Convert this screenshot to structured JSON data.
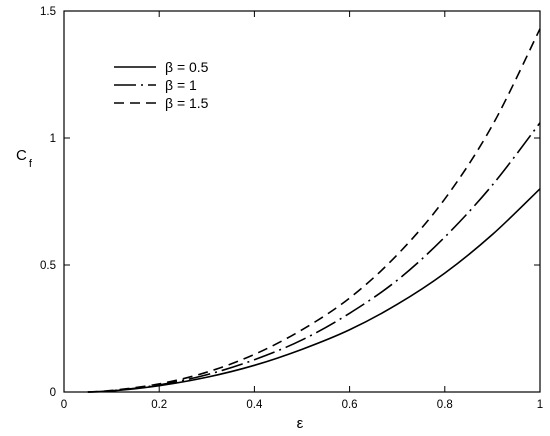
{
  "chart_data": {
    "type": "line",
    "title": "",
    "xlabel": "ε",
    "ylabel_main": "C",
    "ylabel_sub": "f",
    "xlim": [
      0,
      1
    ],
    "ylim": [
      0,
      1.5
    ],
    "grid": false,
    "legend_position": "top-left",
    "xticks": [
      0,
      0.2,
      0.4,
      0.6,
      0.8,
      1
    ],
    "xtick_labels": [
      "0",
      "0.2",
      "0.4",
      "0.6",
      "0.8",
      "1"
    ],
    "yticks": [
      0,
      0.5,
      1,
      1.5
    ],
    "ytick_labels": [
      "0",
      "0.5",
      "1",
      "1.5"
    ],
    "series": [
      {
        "name": "β = 0.5",
        "style": "solid",
        "x": [
          0.05,
          0.1,
          0.2,
          0.3,
          0.4,
          0.5,
          0.6,
          0.7,
          0.8,
          0.9,
          1.0
        ],
        "y": [
          0.0,
          0.004,
          0.025,
          0.058,
          0.105,
          0.168,
          0.245,
          0.345,
          0.468,
          0.62,
          0.8
        ]
      },
      {
        "name": "β = 1",
        "style": "dashdot",
        "x": [
          0.05,
          0.1,
          0.2,
          0.3,
          0.4,
          0.5,
          0.6,
          0.7,
          0.8,
          0.9,
          1.0
        ],
        "y": [
          0.0,
          0.005,
          0.028,
          0.068,
          0.127,
          0.205,
          0.31,
          0.44,
          0.61,
          0.815,
          1.06
        ]
      },
      {
        "name": "β = 1.5",
        "style": "dashed",
        "x": [
          0.05,
          0.1,
          0.2,
          0.3,
          0.4,
          0.5,
          0.6,
          0.7,
          0.8,
          0.9,
          1.0
        ],
        "y": [
          0.0,
          0.006,
          0.032,
          0.078,
          0.148,
          0.245,
          0.37,
          0.54,
          0.76,
          1.05,
          1.43
        ]
      }
    ]
  }
}
